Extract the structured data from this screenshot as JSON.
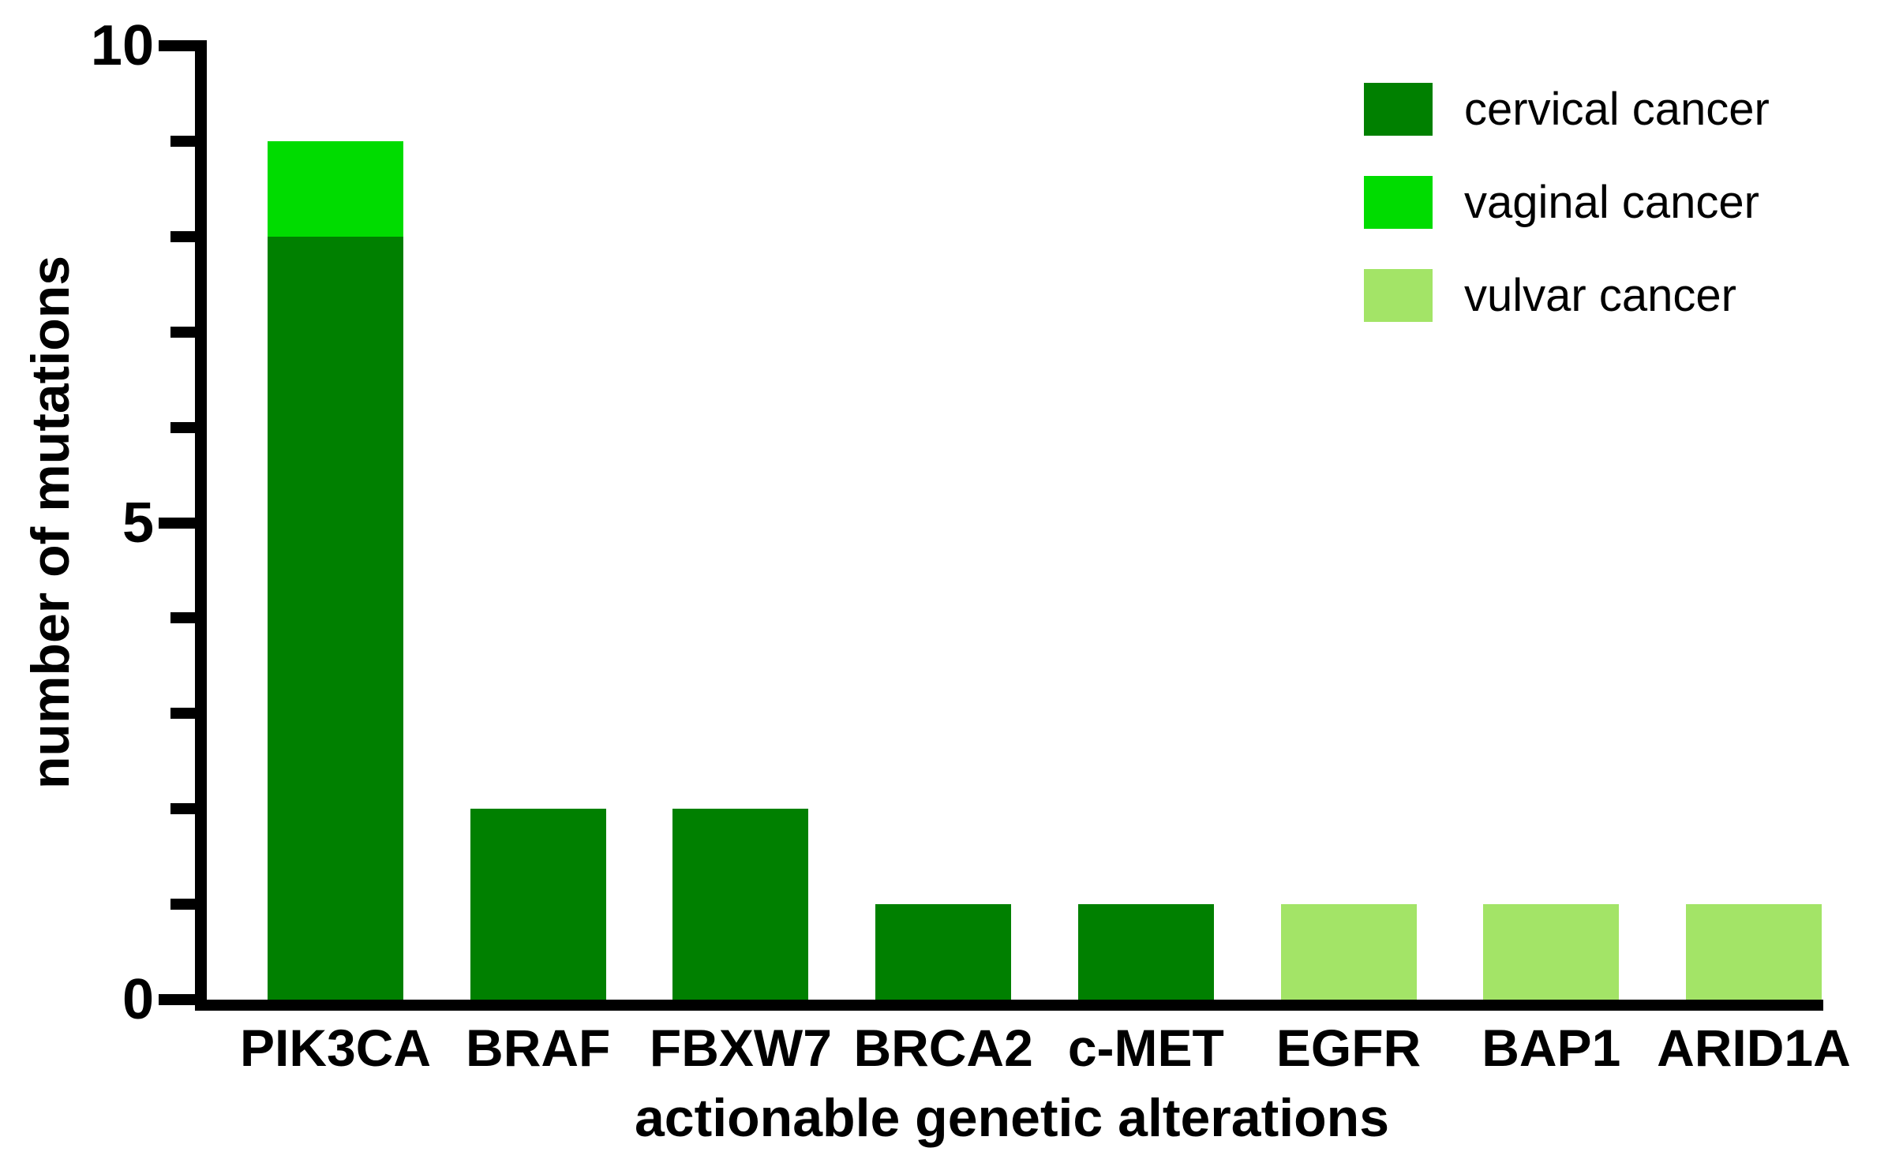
{
  "chart_data": {
    "type": "bar",
    "stacked": true,
    "title": "",
    "xlabel": "actionable genetic alterations",
    "ylabel": "number of mutations",
    "ylim": [
      0,
      10
    ],
    "yticks_major": [
      0,
      5,
      10
    ],
    "ytick_labels": [
      "0",
      "5",
      "10"
    ],
    "yticks_minor": [
      1,
      2,
      3,
      4,
      6,
      7,
      8,
      9
    ],
    "grid": false,
    "legend_position": "top-right",
    "categories": [
      "PIK3CA",
      "BRAF",
      "FBXW7",
      "BRCA2",
      "c-MET",
      "EGFR",
      "BAP1",
      "ARID1A"
    ],
    "series": [
      {
        "name": "cervical cancer",
        "color": "#008000",
        "values": [
          8,
          2,
          2,
          1,
          1,
          0,
          0,
          0
        ]
      },
      {
        "name": "vaginal cancer",
        "color": "#00DC00",
        "values": [
          1,
          0,
          0,
          0,
          0,
          0,
          0,
          0
        ]
      },
      {
        "name": "vulvar cancer",
        "color": "#A3E467",
        "values": [
          0,
          0,
          0,
          0,
          0,
          1,
          1,
          1
        ]
      }
    ],
    "totals": [
      9,
      2,
      2,
      1,
      1,
      1,
      1,
      1
    ],
    "axis_color": "#000000",
    "text_color": "#000000",
    "background_color": "#FFFFFF"
  }
}
